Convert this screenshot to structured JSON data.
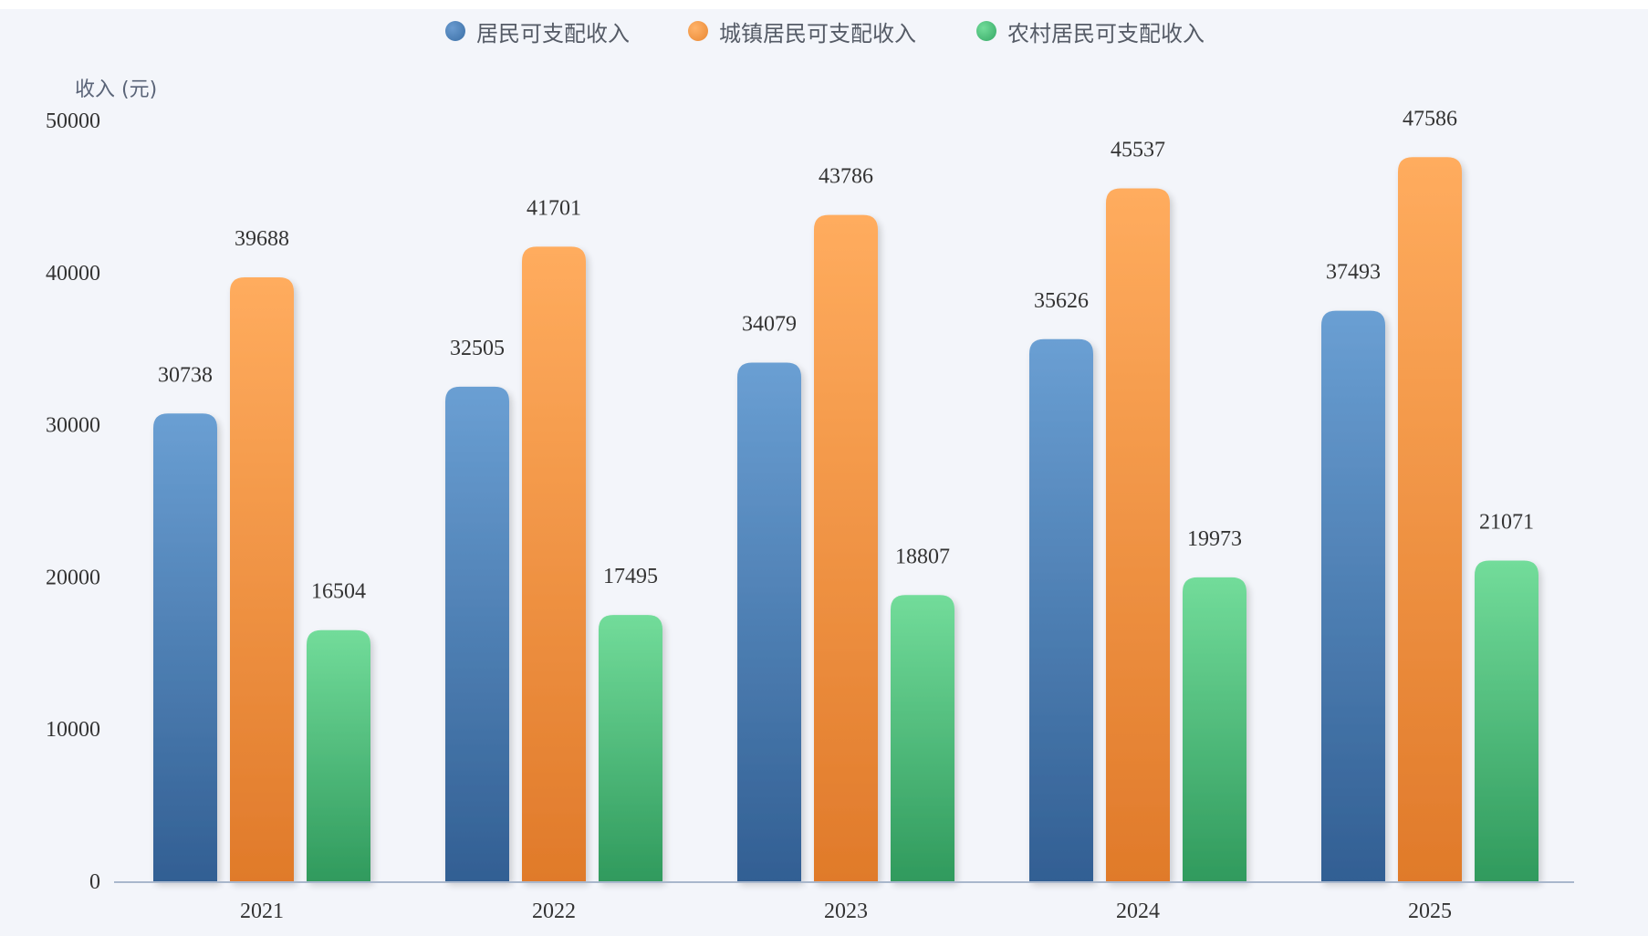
{
  "chart_data": {
    "type": "bar",
    "ylabel": "收入 (元)",
    "xlabel": "",
    "ylim": [
      0,
      50000
    ],
    "yticks": [
      "0",
      "10000",
      "20000",
      "30000",
      "40000",
      "50000"
    ],
    "categories": [
      "2021",
      "2022",
      "2023",
      "2024",
      "2025"
    ],
    "legend_position": "top-center",
    "grid": false,
    "series": [
      {
        "name": "居民可支配收入",
        "color": "#4a7fb5",
        "values": [
          30738,
          32505,
          34079,
          35626,
          37493
        ]
      },
      {
        "name": "城镇居民可支配收入",
        "color": "#f0903f",
        "values": [
          39688,
          41701,
          43786,
          45537,
          47586
        ]
      },
      {
        "name": "农村居民可支配收入",
        "color": "#4fc07e",
        "values": [
          16504,
          17495,
          18807,
          19973,
          21071
        ]
      }
    ]
  }
}
